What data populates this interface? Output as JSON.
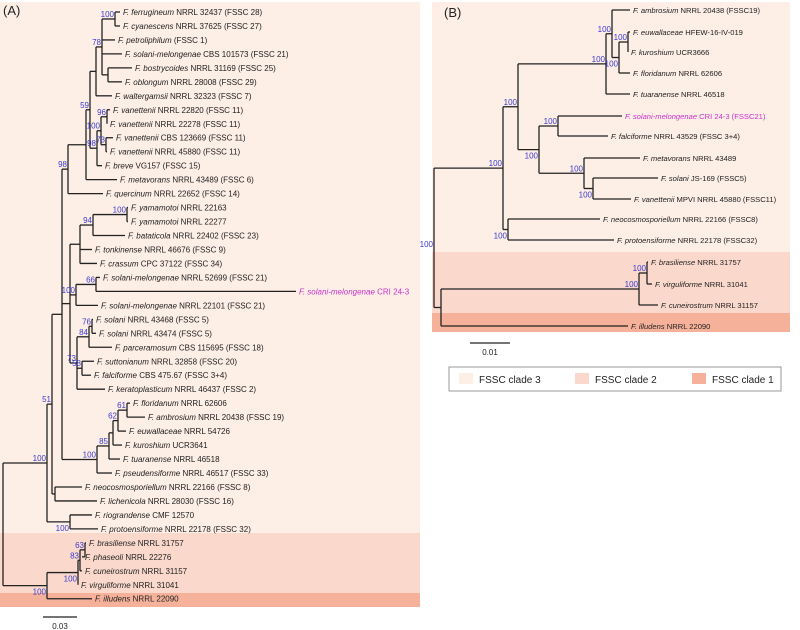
{
  "colors": {
    "clade3": "#fdeee6",
    "clade2": "#fad9cc",
    "clade1": "#f5b19a",
    "support": "#3a3ad0",
    "highlight": "#cc33cc"
  },
  "panel_a": {
    "label": "(A)",
    "scale": "0.03",
    "leaves": [
      {
        "species": "F. ferrugineum",
        "strain": "NRRL 32437 (FSSC 28)"
      },
      {
        "species": "F. cyanescens",
        "strain": "NRRL 37625 (FSSC 27)"
      },
      {
        "species": "F. petroliphilum",
        "strain": "(FSSC 1)"
      },
      {
        "species": "F. solani-melongenae",
        "strain": "CBS 101573 (FSSC 21)"
      },
      {
        "species": "F. bostrycoides",
        "strain": "NRRL 31169 (FSSC 25)"
      },
      {
        "species": "F. oblongum",
        "strain": "NRRL 28008 (FSSC 29)"
      },
      {
        "species": "F. waltergamsii",
        "strain": "NRRL 32323 (FSSC 7)"
      },
      {
        "species": "F. vanettenii",
        "strain": "NRRL 22820 (FSSC 11)"
      },
      {
        "species": "F. vanettenii",
        "strain": "NRRL 22278 (FSSC 11)"
      },
      {
        "species": "F. vanettenii",
        "strain": "CBS 123669 (FSSC 11)"
      },
      {
        "species": "F. vanettenii",
        "strain": "NRRL 45880 (FSSC 11)"
      },
      {
        "species": "F. breve",
        "strain": "VG157 (FSSC 15)"
      },
      {
        "species": "F. metavorans",
        "strain": "NRRL 43489 (FSSC 6)"
      },
      {
        "species": "F. quercinum",
        "strain": "NRRL 22652 (FSSC 14)"
      },
      {
        "species": "F. yamamotoi",
        "strain": "NRRL 22163"
      },
      {
        "species": "F. yamamotoi",
        "strain": "NRRL 22277"
      },
      {
        "species": "F. bataticola",
        "strain": "NRRL 22402 (FSSC 23)"
      },
      {
        "species": "F. tonkinense",
        "strain": "NRRL 46676 (FSSC 9)"
      },
      {
        "species": "F. crassum",
        "strain": "CPC 37122 (FSSC 34)"
      },
      {
        "species": "F. solani-melongenae",
        "strain": "NRRL 52699 (FSSC 21)"
      },
      {
        "species": "F. solani-melongenae",
        "strain": "CRI 24-3",
        "highlight": true
      },
      {
        "species": "F. solani-melongenae",
        "strain": "NRRL 22101 (FSSC 21)"
      },
      {
        "species": "F. solani",
        "strain": "NRRL 43468 (FSSC 5)"
      },
      {
        "species": "F. solani",
        "strain": "NRRL 43474 (FSSC 5)"
      },
      {
        "species": "F. parceramosum",
        "strain": "CBS 115695 (FSSC 18)"
      },
      {
        "species": "F. suttonianum",
        "strain": "NRRL 32858 (FSSC 20)"
      },
      {
        "species": "F. falciforme",
        "strain": "CBS 475.67 (FSSC 3+4)"
      },
      {
        "species": "F. keratoplasticum",
        "strain": "NRRL 46437 (FSSC 2)"
      },
      {
        "species": "F. floridanum",
        "strain": "NRRL 62606"
      },
      {
        "species": "F. ambrosium",
        "strain": "NRRL 20438 (FSSC 19)"
      },
      {
        "species": "F. euwallaceae",
        "strain": "NRRL 54726"
      },
      {
        "species": "F. kuroshium",
        "strain": "UCR3641"
      },
      {
        "species": "F. tuaranense",
        "strain": "NRRL 46518"
      },
      {
        "species": "F. pseudensiforme",
        "strain": "NRRL 46517 (FSSC 33)"
      },
      {
        "species": "F. neocosmosporiellum",
        "strain": "NRRL 22166 (FSSC 8)"
      },
      {
        "species": "F. lichenicola",
        "strain": "NRRL 28030 (FSSC 16)"
      },
      {
        "species": "F. riograndense",
        "strain": "CMF 12570"
      },
      {
        "species": "F. protoensiforme",
        "strain": "NRRL 22178 (FSSC 32)"
      },
      {
        "species": "F. brasiliense",
        "strain": "NRRL 31757"
      },
      {
        "species": "F. phaseoli",
        "strain": "NRRL 22276"
      },
      {
        "species": "F. cuneirostrum",
        "strain": "NRRL 31157"
      },
      {
        "species": "F. virguliforme",
        "strain": "NRRL 31041"
      },
      {
        "species": "F. illudens",
        "strain": "NRRL 22090"
      }
    ],
    "support": [
      "100",
      "51",
      "98",
      "59",
      "78",
      "100",
      "98",
      "100",
      "96",
      "73",
      "94",
      "100",
      "100",
      "66",
      "73",
      "84",
      "76",
      "58",
      "100",
      "85",
      "62",
      "61",
      "100",
      "100",
      "100",
      "83",
      "63"
    ]
  },
  "panel_b": {
    "label": "(B)",
    "scale": "0.01",
    "leaves": [
      {
        "species": "F. ambrosium",
        "strain": "NRRL 20438 (FSSC19)"
      },
      {
        "species": "F. euwallaceae",
        "strain": "HFEW-16-IV-019"
      },
      {
        "species": "F. kuroshium",
        "strain": "UCR3666"
      },
      {
        "species": "F. floridanum",
        "strain": "NRRL 62606"
      },
      {
        "species": "F. tuaranense",
        "strain": "NRRL 46518"
      },
      {
        "species": "F. solani-melongenae",
        "strain": "CRI 24-3 (FSSC21)",
        "highlight": true
      },
      {
        "species": "F. falciforme",
        "strain": "NRRL 43529 (FSSC 3+4)"
      },
      {
        "species": "F. metavorans",
        "strain": "NRRL 43489"
      },
      {
        "species": "F. solani",
        "strain": "JS-169 (FSSC5)"
      },
      {
        "species": "F. vanettenii",
        "strain": "MPVI NRRL 45880 (FSSC11)"
      },
      {
        "species": "F. neocosmosporiellum",
        "strain": "NRRL 22166 (FSSC8)"
      },
      {
        "species": "F. protoensiforme",
        "strain": "NRRL 22178 (FSSC32)"
      },
      {
        "species": "F. brasiliense",
        "strain": "NRRL 31757"
      },
      {
        "species": "F. virguliforme",
        "strain": "NRRL 31041"
      },
      {
        "species": "F. cuneirostrum",
        "strain": "NRRL 31157"
      },
      {
        "species": "F. illudens",
        "strain": "NRRL 22090"
      }
    ],
    "support": [
      "100",
      "100",
      "100",
      "100",
      "100",
      "100",
      "100",
      "100",
      "100",
      "100",
      "100",
      "100",
      "100",
      "100"
    ]
  },
  "legend": [
    {
      "label": "FSSC clade 3",
      "color": "#fdeee6"
    },
    {
      "label": "FSSC clade 2",
      "color": "#fad9cc"
    },
    {
      "label": "FSSC clade 1",
      "color": "#f5b19a"
    }
  ]
}
